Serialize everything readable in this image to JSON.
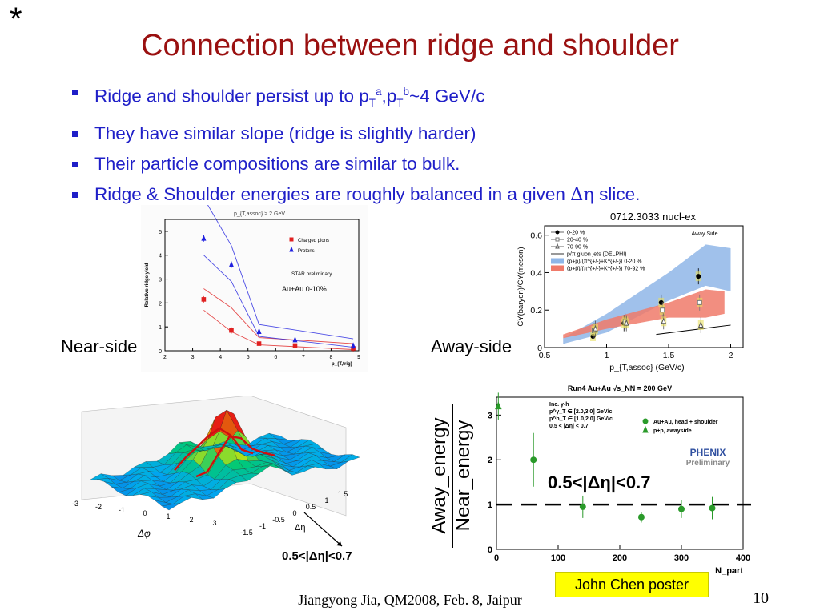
{
  "slide": {
    "star": "*",
    "title": "Connection between ridge and shoulder",
    "bullets": [
      {
        "pre": "Ridge and shoulder persist up to p",
        "sub1": "T",
        "sup1": "a",
        "mid": ",p",
        "sub2": "T",
        "sup2": "b",
        "post": "~4 GeV/c"
      },
      {
        "text": "They have similar slope (ridge is slightly harder)"
      },
      {
        "text": "Their particle compositions are similar to bulk."
      },
      {
        "pre": "Ridge & Shoulder energies are roughly balanced in a given ",
        "symbol": "Δη",
        "post": " slice."
      }
    ],
    "near_side_label": "Near-side",
    "away_side_label": "Away-side",
    "arxiv_ref": "0712.3033 nucl-ex",
    "footer": "Jiangyong Jia, QM2008, Feb. 8, Jaipur",
    "page_number": "10",
    "poster_note": "John Chen poster",
    "bullet_color": "#1f1fc8",
    "title_color": "#9a1010"
  },
  "chart_data": [
    {
      "type": "line",
      "title": "p_{T,assoc} > 2 GeV",
      "xlabel": "p_{T,trig}",
      "ylabel": "Relative ridge yield",
      "xlim": [
        2,
        9
      ],
      "ylim": [
        0,
        5.5
      ],
      "xticks": [
        2,
        3,
        4,
        5,
        6,
        7,
        8,
        9
      ],
      "yticks": [
        0,
        1,
        2,
        3,
        4,
        5
      ],
      "legend": [
        "Charged pions",
        "Protons"
      ],
      "annotations": [
        "STAR preliminary",
        "Au+Au 0-10%"
      ],
      "series": [
        {
          "name": "Charged pions",
          "color": "#e02020",
          "marker": "square",
          "x": [
            3.4,
            4.4,
            5.4,
            6.7,
            8.8
          ],
          "y": [
            2.15,
            0.85,
            0.3,
            0.22,
            0.1
          ]
        },
        {
          "name": "Protons",
          "color": "#2020e0",
          "marker": "triangle",
          "x": [
            3.4,
            4.4,
            5.4,
            6.7,
            8.8
          ],
          "y": [
            4.7,
            3.6,
            0.8,
            0.45,
            0.2
          ]
        }
      ],
      "bands": [
        {
          "color": "#e02020",
          "upper": [
            [
              3.4,
              2.6
            ],
            [
              4.4,
              1.8
            ],
            [
              5.4,
              0.55
            ],
            [
              8.8,
              0.3
            ]
          ],
          "lower": [
            [
              3.4,
              1.7
            ],
            [
              4.4,
              0.8
            ],
            [
              5.4,
              0.25
            ],
            [
              8.8,
              0.05
            ]
          ]
        },
        {
          "color": "#2020e0",
          "upper": [
            [
              3.4,
              6.4
            ],
            [
              4.4,
              4.4
            ],
            [
              5.4,
              1.1
            ],
            [
              8.8,
              0.5
            ]
          ],
          "lower": [
            [
              3.4,
              4.0
            ],
            [
              4.4,
              2.9
            ],
            [
              5.4,
              0.6
            ],
            [
              8.8,
              0.15
            ]
          ]
        }
      ]
    },
    {
      "type": "scatter",
      "title": "Away Side",
      "xlabel": "p_{T,assoc} (GeV/c)",
      "ylabel": "CY(baryon)/CY(meson)",
      "xlim": [
        0.5,
        2.1
      ],
      "ylim": [
        0,
        0.65
      ],
      "xticks": [
        0.5,
        1,
        1.5,
        2
      ],
      "yticks": [
        0,
        0.2,
        0.4,
        0.6
      ],
      "legend": [
        "0-20 %",
        "20-40 %",
        "70-90 %",
        "p/π gluon jets (DELPHI)",
        "(p+p̄)/(π^{+/-}+K^{+/-}) 0-20 %",
        "(p+p̄)/(π^{+/-}+K^{+/-}) 70-92 %"
      ],
      "series": [
        {
          "name": "0-20 %",
          "color": "#000000",
          "marker": "filled-circle",
          "x": [
            0.9,
            1.15,
            1.45,
            1.75
          ],
          "y": [
            0.06,
            0.13,
            0.24,
            0.38
          ]
        },
        {
          "name": "20-40 %",
          "color": "#777777",
          "marker": "open-square",
          "x": [
            0.9,
            1.15,
            1.45,
            1.75
          ],
          "y": [
            0.09,
            0.14,
            0.2,
            0.24
          ]
        },
        {
          "name": "70-90 %",
          "color": "#555555",
          "marker": "open-triangle",
          "x": [
            0.9,
            1.15,
            1.45,
            1.75
          ],
          "y": [
            0.1,
            0.13,
            0.14,
            0.12
          ]
        },
        {
          "name": "p/π gluon jets (DELPHI)",
          "color": "#000000",
          "marker": "line",
          "x": [
            1.4,
            2.0
          ],
          "y": [
            0.07,
            0.12
          ]
        }
      ],
      "bands": [
        {
          "name": "(p+p̄)/(π^{+/-}+K^{+/-}) 0-20 %",
          "color": "#8fb6e8",
          "upper": [
            [
              0.65,
              0.05
            ],
            [
              1.0,
              0.18
            ],
            [
              1.5,
              0.4
            ],
            [
              1.8,
              0.55
            ],
            [
              2.0,
              0.53
            ]
          ],
          "lower": [
            [
              0.65,
              0.02
            ],
            [
              1.0,
              0.08
            ],
            [
              1.5,
              0.25
            ],
            [
              1.8,
              0.33
            ],
            [
              2.0,
              0.3
            ]
          ]
        },
        {
          "name": "(p+p̄)/(π^{+/-}+K^{+/-}) 70-92 %",
          "color": "#f07a6a",
          "upper": [
            [
              0.65,
              0.07
            ],
            [
              1.0,
              0.15
            ],
            [
              1.5,
              0.24
            ],
            [
              1.8,
              0.31
            ],
            [
              1.95,
              0.3
            ]
          ],
          "lower": [
            [
              0.65,
              0.05
            ],
            [
              1.0,
              0.1
            ],
            [
              1.5,
              0.16
            ],
            [
              1.8,
              0.16
            ],
            [
              1.95,
              0.18
            ]
          ]
        }
      ]
    },
    {
      "type": "scatter",
      "title": "Run4 Au+Au √s_NN = 200 GeV",
      "xlabel": "N_part",
      "ylabel": "Away_energy / Near_energy",
      "xlim": [
        0,
        400
      ],
      "ylim": [
        0,
        3.4
      ],
      "xticks": [
        0,
        100,
        200,
        300,
        400
      ],
      "yticks": [
        0,
        1,
        2,
        3
      ],
      "legend": [
        "Au+Au, head + shoulder",
        "p+p, awayside"
      ],
      "annotations": [
        "Inc. γ-h",
        "p^γ_T ∈ [2.0,3.0] GeV/c",
        "p^h_T ∈ [1.0,2.0] GeV/c",
        "0.5 < |Δη| < 0.7",
        "PHENIX Preliminary"
      ],
      "reference_line_y": 1,
      "series": [
        {
          "name": "Au+Au, head + shoulder",
          "color": "#2a9a2a",
          "marker": "filled-circle",
          "x": [
            60,
            140,
            235,
            300,
            350
          ],
          "y": [
            2.0,
            0.95,
            0.72,
            0.9,
            0.92
          ],
          "err": [
            0.6,
            0.25,
            0.12,
            0.2,
            0.25
          ]
        },
        {
          "name": "p+p, awayside",
          "color": "#2a9a2a",
          "marker": "filled-triangle",
          "x": [
            3
          ],
          "y": [
            3.2
          ],
          "err": [
            0.3
          ]
        }
      ]
    }
  ],
  "surface": {
    "x_ticks": [
      "-3",
      "-2",
      "-1",
      "0",
      "1",
      "2",
      "3"
    ],
    "y_ticks": [
      "-1.5",
      "-1",
      "-0.5",
      "0",
      "0.5",
      "1",
      "1.5"
    ],
    "x_label": "Δφ",
    "y_label": "Δη",
    "cut_label": "0.5<|Δη|<0.7"
  },
  "eq_label": "0.5<|Δη|<0.7",
  "ratio_num": "Away_energy",
  "ratio_den": "Near_energy"
}
